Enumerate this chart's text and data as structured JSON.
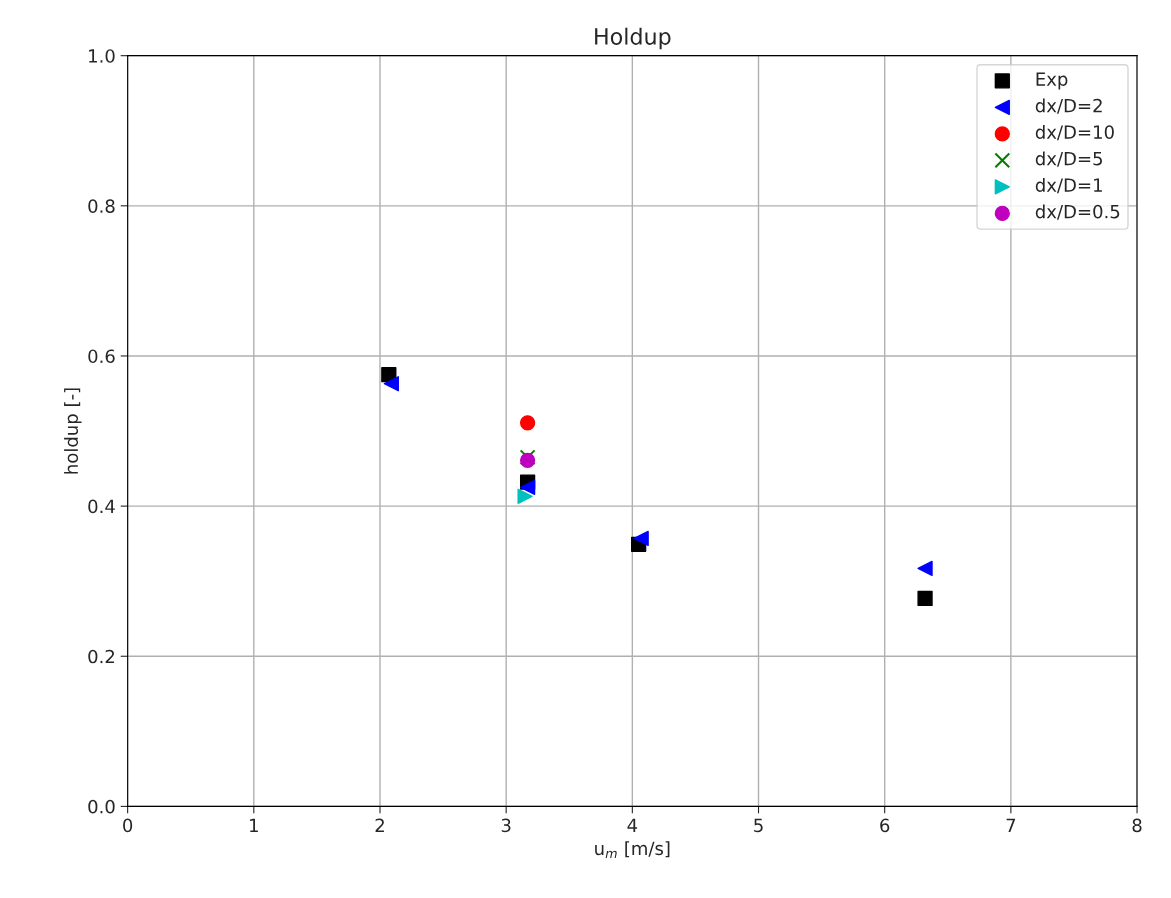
{
  "chart_data": {
    "type": "scatter",
    "title": "Holdup",
    "xlabel": "u$_{m}$ [m/s]",
    "ylabel": "holdup [-]",
    "xlim": [
      0,
      8
    ],
    "xticks": [
      0,
      1,
      2,
      3,
      4,
      5,
      6,
      7,
      8
    ],
    "ylim": [
      0.0,
      1.0
    ],
    "yticks": [
      {
        "value": 0,
        "label": "0.0"
      },
      0.2,
      0.4,
      0.6,
      0.8,
      {
        "value": 1,
        "label": "1.0"
      }
    ],
    "grid": true,
    "legend": "top right",
    "series": [
      {
        "name": "Exp",
        "color": "#000000",
        "marker": "square",
        "x": [
          2.07,
          3.17,
          4.05,
          6.32
        ],
        "values": [
          0.575,
          0.432,
          0.349,
          0.277
        ]
      },
      {
        "name": "dx/D=2",
        "color": "#0000ff",
        "marker": "triangle-left",
        "x": [
          2.09,
          3.17,
          4.07,
          6.32
        ],
        "values": [
          0.563,
          0.425,
          0.357,
          0.317
        ]
      },
      {
        "name": "dx/D=10",
        "color": "#ff0000",
        "marker": "circle",
        "x": [
          3.17
        ],
        "values": [
          0.511
        ]
      },
      {
        "name": "dx/D=5",
        "color": "#008000",
        "marker": "cross",
        "x": [
          3.17
        ],
        "values": [
          0.465
        ]
      },
      {
        "name": "dx/D=1",
        "color": "#00bfbf",
        "marker": "triangle-right",
        "x": [
          3.15
        ],
        "values": [
          0.413
        ]
      },
      {
        "name": "dx/D=0.5",
        "color": "#bf00bf",
        "marker": "circle",
        "x": [
          3.17
        ],
        "values": [
          0.461
        ]
      }
    ]
  }
}
